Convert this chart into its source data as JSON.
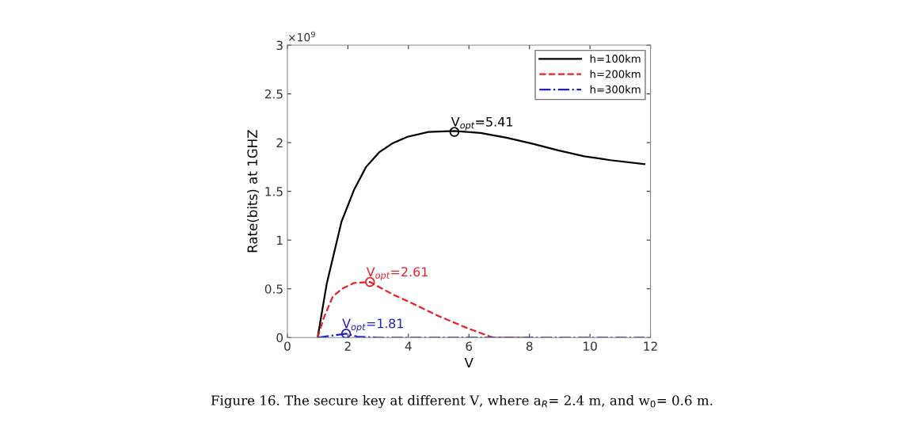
{
  "chart_data": {
    "type": "line",
    "xlabel": "V",
    "ylabel": "Rate(bits) at 1GHZ",
    "xlim": [
      0,
      12
    ],
    "ylim": [
      0,
      3
    ],
    "xticks": [
      0,
      2,
      4,
      6,
      8,
      10,
      12
    ],
    "yticks": [
      0,
      0.5,
      1,
      1.5,
      2,
      2.5,
      3
    ],
    "grid": false,
    "legend": "top right",
    "series": [
      {
        "name": "h=100km",
        "color": "#000000",
        "line_style": "solid",
        "x": [
          1,
          1.3,
          1.79,
          2.21,
          2.6,
          3.03,
          3.46,
          3.97,
          4.66,
          5.52,
          6.38,
          7.24,
          8.09,
          8.95,
          9.81,
          10.67,
          11.8
        ],
        "values": [
          0,
          0.55,
          1.19,
          1.52,
          1.75,
          1.9,
          1.99,
          2.06,
          2.11,
          2.12,
          2.1,
          2.05,
          1.99,
          1.92,
          1.86,
          1.82,
          1.78
        ]
      },
      {
        "name": "h=200km",
        "color": "#e8202a",
        "line_style": "dashed",
        "x": [
          1,
          1.2,
          1.5,
          1.8,
          2.2,
          2.73,
          3.5,
          4,
          5,
          6,
          6.8,
          8
        ],
        "values": [
          0,
          0.2,
          0.42,
          0.5,
          0.56,
          0.57,
          0.44,
          0.37,
          0.22,
          0.09,
          0,
          0
        ]
      },
      {
        "name": "h=300km",
        "color": "#1f1fbf",
        "line_style": "dashdot",
        "x": [
          1,
          1.94,
          2.3,
          3,
          6,
          9,
          11.8
        ],
        "values": [
          0,
          0.04,
          0.01,
          0,
          0,
          0,
          0
        ]
      },
      {
        "type": "scatter",
        "color": "#000000",
        "marker": "circle",
        "x": [
          5.52
        ],
        "values": [
          2.11
        ]
      },
      {
        "type": "scatter",
        "color": "#e8202a",
        "marker": "circle",
        "x": [
          2.73
        ],
        "values": [
          0.57
        ]
      },
      {
        "type": "scatter",
        "color": "#1f1fbf",
        "marker": "circle",
        "x": [
          1.94
        ],
        "values": [
          0.04
        ]
      }
    ],
    "annotations": [
      {
        "text": "V$_{opt}$=5.41",
        "x": 5.41,
        "y": 2.11
      },
      {
        "text": "V$_{opt}$=2.61",
        "x": 2.61,
        "y": 0.57
      },
      {
        "text": "V$_{opt}$=1.81",
        "x": 1.81,
        "y": 0.04
      },
      "×10$^{9}$",
      "Figure 16. The secure key at different V, where a$_{R}$= 2.4 m, and w$_{0}$= 0.6 m."
    ]
  }
}
